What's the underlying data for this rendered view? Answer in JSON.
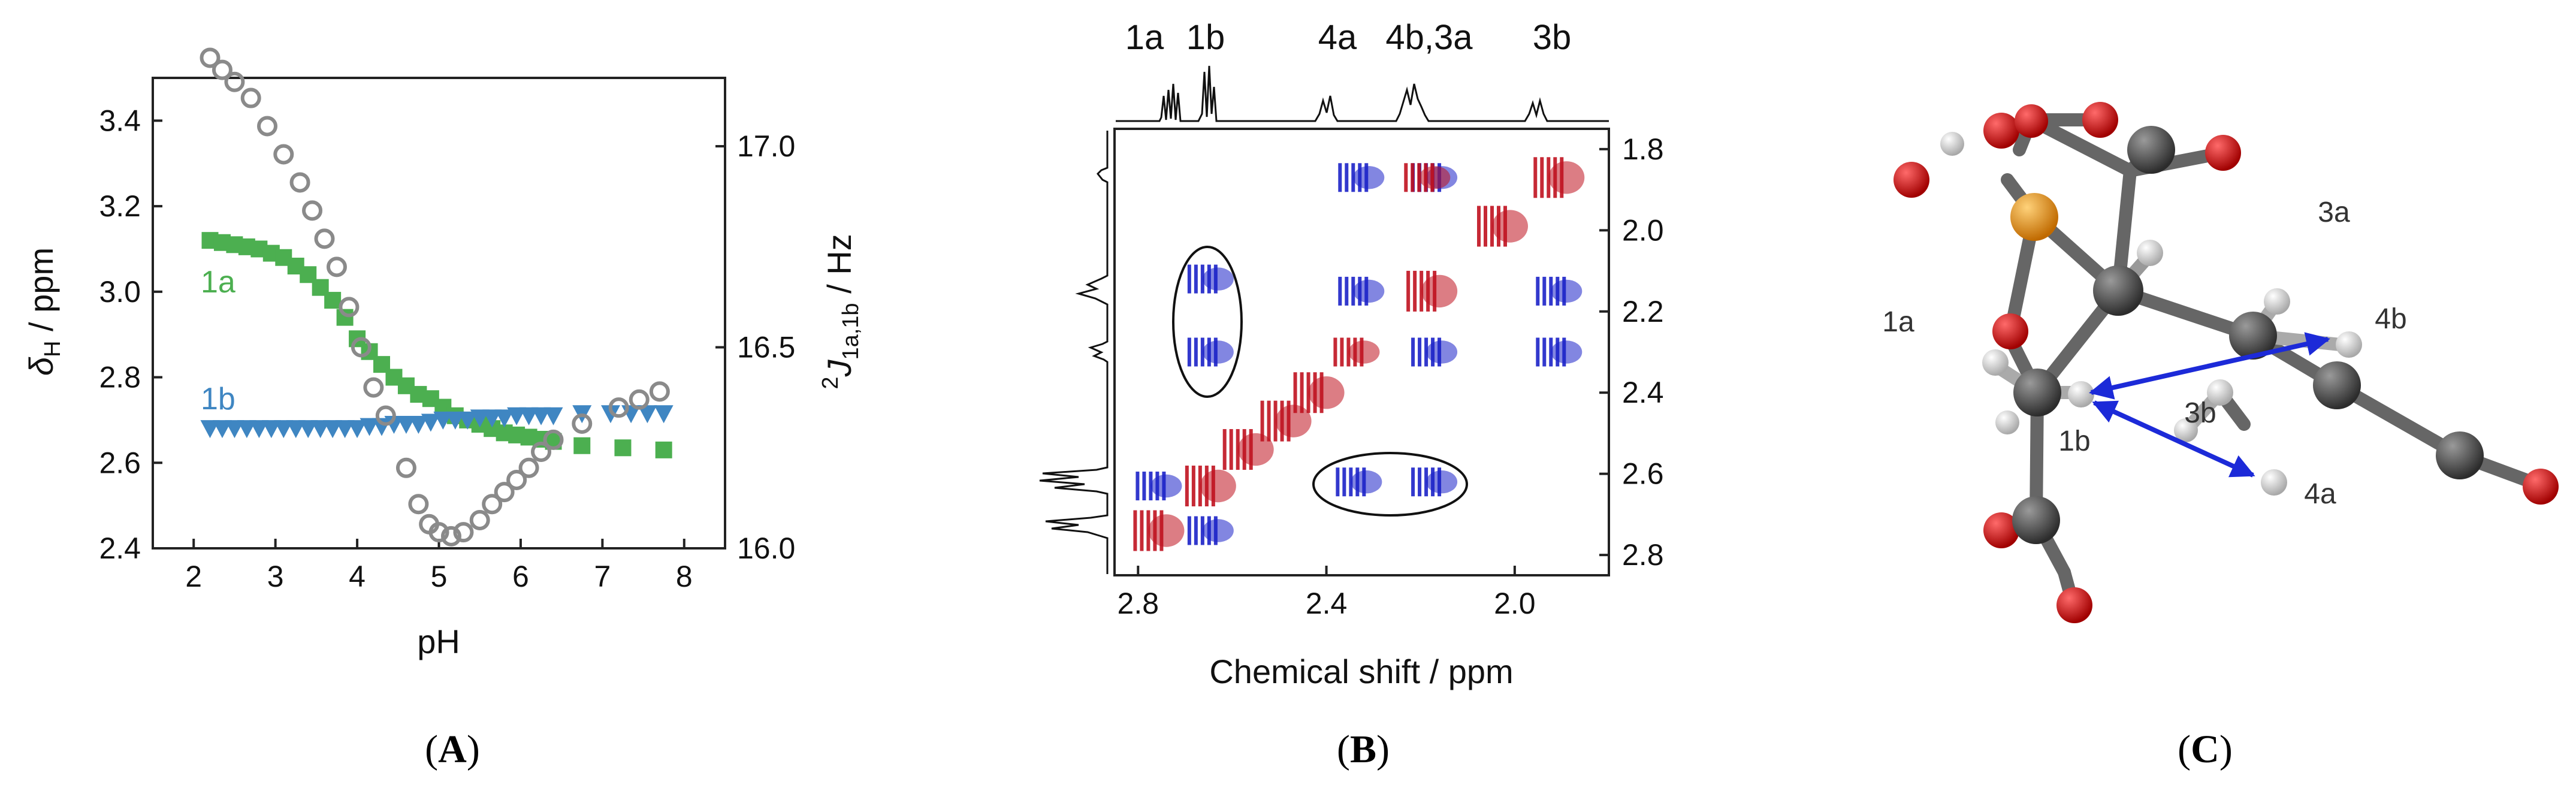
{
  "chart_data": [
    {
      "panel": "A",
      "type": "scatter",
      "caption": "(A)",
      "xlabel": "pH",
      "ylabel_left": {
        "symbol": "δ",
        "sub": "H",
        "rest": " / ppm"
      },
      "ylabel_right": {
        "sup": "2",
        "symbol": "J",
        "sub": "1a,1b",
        "rest": " / Hz"
      },
      "xlim": [
        1.5,
        8.5
      ],
      "ylim_left": [
        2.4,
        3.5
      ],
      "ylim_right": [
        16.0,
        17.17
      ],
      "xticks": [
        "2",
        "3",
        "4",
        "5",
        "6",
        "7",
        "8"
      ],
      "yticks_left": [
        "2.4",
        "2.6",
        "2.8",
        "3.0",
        "3.2",
        "3.4"
      ],
      "yticks_right": [
        "16.0",
        "16.5",
        "17.0"
      ],
      "colors": {
        "1a": "#4caf50",
        "1b": "#3f86c2",
        "J": "#8a8a8a"
      },
      "series": [
        {
          "name": "1a",
          "marker": "square",
          "axis": "left",
          "x": [
            2.2,
            2.35,
            2.5,
            2.65,
            2.8,
            2.95,
            3.1,
            3.25,
            3.4,
            3.55,
            3.7,
            3.85,
            4.0,
            4.15,
            4.3,
            4.45,
            4.6,
            4.75,
            4.9,
            5.05,
            5.2,
            5.35,
            5.5,
            5.65,
            5.8,
            5.95,
            6.1,
            6.25,
            6.4,
            6.75,
            7.25,
            7.75
          ],
          "values": [
            3.12,
            3.115,
            3.11,
            3.105,
            3.1,
            3.09,
            3.08,
            3.06,
            3.04,
            3.01,
            2.98,
            2.94,
            2.89,
            2.86,
            2.83,
            2.8,
            2.78,
            2.76,
            2.75,
            2.73,
            2.71,
            2.7,
            2.69,
            2.68,
            2.67,
            2.665,
            2.66,
            2.655,
            2.65,
            2.64,
            2.635,
            2.63
          ]
        },
        {
          "name": "1b",
          "marker": "triangle-down",
          "axis": "left",
          "x": [
            2.2,
            2.35,
            2.5,
            2.65,
            2.8,
            2.95,
            3.1,
            3.25,
            3.4,
            3.55,
            3.7,
            3.85,
            4.0,
            4.15,
            4.3,
            4.45,
            4.6,
            4.75,
            4.9,
            5.05,
            5.2,
            5.35,
            5.5,
            5.65,
            5.8,
            5.95,
            6.1,
            6.25,
            6.4,
            6.75,
            7.1,
            7.35,
            7.55,
            7.75
          ],
          "values": [
            2.68,
            2.68,
            2.68,
            2.68,
            2.68,
            2.68,
            2.68,
            2.68,
            2.68,
            2.68,
            2.68,
            2.68,
            2.68,
            2.685,
            2.685,
            2.69,
            2.69,
            2.69,
            2.695,
            2.7,
            2.7,
            2.7,
            2.705,
            2.705,
            2.705,
            2.71,
            2.71,
            2.71,
            2.71,
            2.715,
            2.715,
            2.715,
            2.715,
            2.715
          ]
        },
        {
          "name": "2J(1a,1b)",
          "marker": "circle-open",
          "axis": "right",
          "x": [
            2.2,
            2.35,
            2.5,
            2.7,
            2.9,
            3.1,
            3.3,
            3.45,
            3.6,
            3.75,
            3.9,
            4.05,
            4.2,
            4.35,
            4.6,
            4.75,
            4.88,
            5.0,
            5.15,
            5.3,
            5.5,
            5.65,
            5.8,
            5.95,
            6.1,
            6.25,
            6.4,
            6.75,
            7.2,
            7.45,
            7.7
          ],
          "values": [
            17.22,
            17.19,
            17.16,
            17.12,
            17.05,
            16.98,
            16.91,
            16.84,
            16.77,
            16.7,
            16.6,
            16.5,
            16.4,
            16.33,
            16.2,
            16.11,
            16.06,
            16.04,
            16.03,
            16.04,
            16.07,
            16.11,
            16.14,
            16.17,
            16.2,
            16.24,
            16.27,
            16.31,
            16.35,
            16.37,
            16.39
          ]
        }
      ],
      "annotations": [
        "1a",
        "1b"
      ]
    },
    {
      "panel": "B",
      "type": "heatmap",
      "caption": "(B)",
      "xlabel": "Chemical shift / ppm",
      "xlim": [
        2.85,
        1.8
      ],
      "ylim": [
        1.75,
        2.85
      ],
      "xticks": [
        "2.8",
        "2.4",
        "2.0"
      ],
      "yticks": [
        "1.8",
        "2.0",
        "2.2",
        "2.4",
        "2.6",
        "2.8"
      ],
      "projection_labels": [
        "1a",
        "1b",
        "4a",
        "4b,3a",
        "3b"
      ],
      "colors": {
        "positive": "#c0121f",
        "negative": "#1c22c8"
      },
      "peak_groups": [
        {
          "x": 2.31,
          "y": 1.87,
          "color": "negative"
        },
        {
          "x": 2.155,
          "y": 1.87,
          "color": "negative"
        },
        {
          "x": 2.17,
          "y": 1.87,
          "color": "positive"
        },
        {
          "x": 1.89,
          "y": 1.87,
          "color": "positive"
        },
        {
          "x": 2.01,
          "y": 1.99,
          "color": "positive"
        },
        {
          "x": 2.31,
          "y": 2.15,
          "color": "negative"
        },
        {
          "x": 2.16,
          "y": 2.15,
          "color": "positive"
        },
        {
          "x": 1.89,
          "y": 2.15,
          "color": "negative"
        },
        {
          "x": 2.63,
          "y": 2.12,
          "color": "negative"
        },
        {
          "x": 2.63,
          "y": 2.3,
          "color": "negative"
        },
        {
          "x": 2.32,
          "y": 2.3,
          "color": "positive"
        },
        {
          "x": 2.155,
          "y": 2.3,
          "color": "negative"
        },
        {
          "x": 1.89,
          "y": 2.3,
          "color": "negative"
        },
        {
          "x": 2.4,
          "y": 2.4,
          "color": "positive"
        },
        {
          "x": 2.47,
          "y": 2.47,
          "color": "positive"
        },
        {
          "x": 2.55,
          "y": 2.54,
          "color": "positive"
        },
        {
          "x": 2.63,
          "y": 2.63,
          "color": "positive"
        },
        {
          "x": 2.74,
          "y": 2.74,
          "color": "positive"
        },
        {
          "x": 2.74,
          "y": 2.63,
          "color": "negative"
        },
        {
          "x": 2.63,
          "y": 2.74,
          "color": "negative"
        },
        {
          "x": 2.315,
          "y": 2.62,
          "color": "negative"
        },
        {
          "x": 2.155,
          "y": 2.62,
          "color": "negative"
        }
      ],
      "ellipse_annotations": 2
    },
    {
      "panel": "C",
      "type": "molecular-model",
      "caption": "(C)",
      "atom_labels": [
        "3a",
        "4b",
        "1a",
        "1b",
        "3b",
        "4a"
      ],
      "colors": {
        "carbon": "#555555",
        "oxygen": "#e00000",
        "phosphorus": "#e89a1e",
        "hydrogen": "#d8d8d8",
        "arrow": "#1c2ad8"
      }
    }
  ]
}
